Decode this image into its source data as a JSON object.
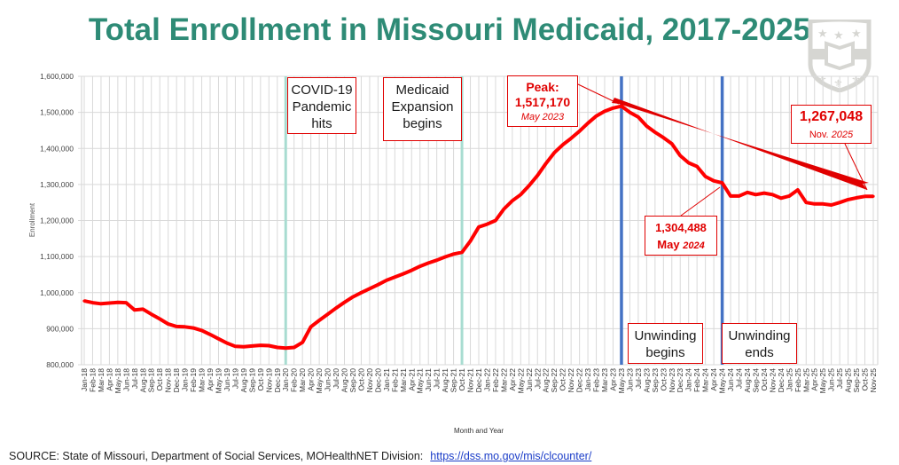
{
  "title": "Total Enrollment in Missouri Medicaid, 2017-2025",
  "source": {
    "text": "SOURCE: State of Missouri, Department of Social Services, MOHealthNET Division:",
    "link": "https://dss.mo.gov/mis/clcounter/"
  },
  "annotations": {
    "covid": [
      "COVID-19",
      "Pandemic",
      "hits"
    ],
    "expansion": [
      "Medicaid",
      "Expansion",
      "begins"
    ],
    "peak": {
      "label": "Peak:",
      "value": "1,517,170",
      "date": "May 2023"
    },
    "may2024": {
      "value": "1,304,488",
      "month": "May",
      "year": "2024"
    },
    "latest": {
      "value": "1,267,048",
      "month": "Nov.",
      "year": "2025"
    },
    "unwinding_begins": [
      "Unwinding",
      "begins"
    ],
    "unwinding_ends": [
      "Unwinding",
      "ends"
    ]
  },
  "colors": {
    "line": "#ff0000",
    "event": "#a8dcd1",
    "unwinding": "#4472c4",
    "title": "#2e8b76"
  },
  "chart_data": {
    "type": "line",
    "title": "Total Enrollment in Missouri Medicaid, 2017-2025",
    "xlabel": "Month and Year",
    "ylabel": "Enrollment",
    "ylim": [
      800000,
      1600000
    ],
    "yticks": [
      "800,000",
      "900,000",
      "1,000,000",
      "1,100,000",
      "1,200,000",
      "1,300,000",
      "1,400,000",
      "1,500,000",
      "1,600,000"
    ],
    "grid": true,
    "categories": [
      "Jan-18",
      "Feb-18",
      "Mar-18",
      "Apr-18",
      "May-18",
      "Jun-18",
      "Jul-18",
      "Aug-18",
      "Sep-18",
      "Oct-18",
      "Nov-18",
      "Dec-18",
      "Jan-19",
      "Feb-19",
      "Mar-19",
      "Apr-19",
      "May-19",
      "Jun-19",
      "Jul-19",
      "Aug-19",
      "Sep-19",
      "Oct-19",
      "Nov-19",
      "Dec-19",
      "Jan-20",
      "Feb-20",
      "Mar-20",
      "Apr-20",
      "May-20",
      "Jun-20",
      "Jul-20",
      "Aug-20",
      "Sep-20",
      "Oct-20",
      "Nov-20",
      "Dec-20",
      "Jan-21",
      "Feb-21",
      "Mar-21",
      "Apr-21",
      "May-21",
      "Jun-21",
      "Jul-21",
      "Aug-21",
      "Sep-21",
      "Oct-21",
      "Nov-21",
      "Dec-21",
      "Jan-22",
      "Feb-22",
      "Mar-22",
      "Apr-22",
      "May-22",
      "Jun-22",
      "Jul-22",
      "Aug-22",
      "Sep-22",
      "Oct-22",
      "Nov-22",
      "Dec-22",
      "Jan-23",
      "Feb-23",
      "Mar-23",
      "Apr-23",
      "May-23",
      "Jun-23",
      "Jul-23",
      "Aug-23",
      "Sep-23",
      "Oct-23",
      "Nov-23",
      "Dec-23",
      "Jan-24",
      "Feb-24",
      "Mar-24",
      "Apr-24",
      "May-24",
      "Jun-24",
      "Jul-24",
      "Aug-24",
      "Sep-24",
      "Oct-24",
      "Nov-24",
      "Dec-24",
      "Jan-25",
      "Feb-25",
      "Mar-25",
      "Apr-25",
      "May-25",
      "Jun-25",
      "Jul-25",
      "Aug-25",
      "Sep-25",
      "Oct-25",
      "Nov-25"
    ],
    "series": [
      {
        "name": "Enrollment",
        "values": [
          977000,
          972000,
          969000,
          971000,
          973000,
          972000,
          952000,
          954000,
          940000,
          927000,
          913000,
          906000,
          905000,
          902000,
          895000,
          884000,
          872000,
          860000,
          851000,
          850000,
          852000,
          854000,
          853000,
          848000,
          846000,
          848000,
          862000,
          905000,
          923000,
          940000,
          957000,
          973000,
          988000,
          1000000,
          1011000,
          1022000,
          1034000,
          1043000,
          1052000,
          1062000,
          1073000,
          1082000,
          1090000,
          1099000,
          1107000,
          1112000,
          1143000,
          1182000,
          1190000,
          1200000,
          1232000,
          1255000,
          1272000,
          1297000,
          1325000,
          1358000,
          1388000,
          1410000,
          1428000,
          1448000,
          1470000,
          1490000,
          1503000,
          1512000,
          1517170,
          1500000,
          1487000,
          1462000,
          1445000,
          1430000,
          1413000,
          1380000,
          1360000,
          1350000,
          1322000,
          1310000,
          1304488,
          1268000,
          1268000,
          1278000,
          1272000,
          1276000,
          1272000,
          1262000,
          1268000,
          1285000,
          1250000,
          1246000,
          1246000,
          1243000,
          1250000,
          1258000,
          1263000,
          1267000,
          1267048
        ]
      }
    ],
    "event_lines": [
      {
        "month": "Jan-20",
        "kind": "event"
      },
      {
        "month": "Oct-21",
        "kind": "event"
      },
      {
        "month": "May-23",
        "kind": "unwinding"
      },
      {
        "month": "May-24",
        "kind": "unwinding"
      }
    ]
  }
}
